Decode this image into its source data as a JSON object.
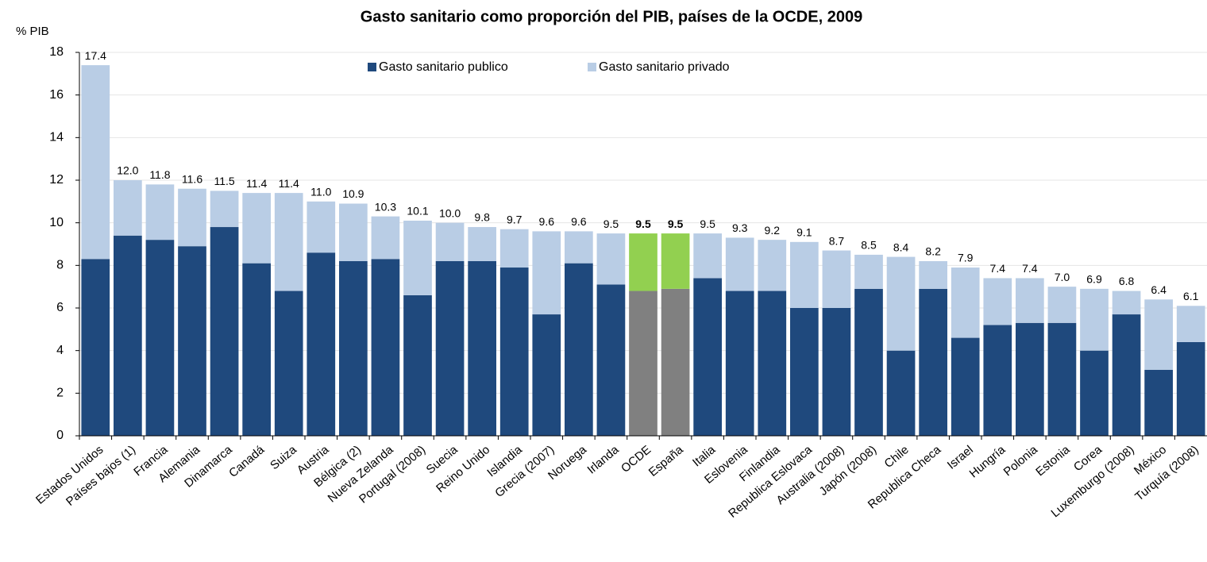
{
  "chart_data": {
    "type": "stacked_bar",
    "title": "Gasto sanitario como proporción del PIB, países de la OCDE, 2009",
    "ylabel": "% PIB",
    "categories": [
      "Estados Unidos",
      "Países bajos (1)",
      "Francia",
      "Alemania",
      "Dinamarca",
      "Canadá",
      "Suiza",
      "Austria",
      "Bélgica (2)",
      "Nueva Zelanda",
      "Portugal (2008)",
      "Suecia",
      "Reino Unido",
      "Islandia",
      "Grecia (2007)",
      "Noruega",
      "Irlanda",
      "OCDE",
      "España",
      "Italia",
      "Eslovenia",
      "Finlandia",
      "Republica Eslovaca",
      "Australia (2008)",
      "Japón (2008)",
      "Chile",
      "Republica Checa",
      "Israel",
      "Hungría",
      "Polonia",
      "Estonia",
      "Corea",
      "Luxemburgo (2008)",
      "México",
      "Turquía (2008)"
    ],
    "series": [
      {
        "name": "Gasto sanitario publico",
        "color": "#1f497d",
        "highlight_color": "#808080",
        "values": [
          8.3,
          9.4,
          9.2,
          8.9,
          9.8,
          8.1,
          6.8,
          8.6,
          8.2,
          8.3,
          6.6,
          8.2,
          8.2,
          7.9,
          5.7,
          8.1,
          7.1,
          6.8,
          6.9,
          7.4,
          6.8,
          6.8,
          6.0,
          6.0,
          6.9,
          4.0,
          6.9,
          4.6,
          5.2,
          5.3,
          5.3,
          4.0,
          5.7,
          3.1,
          4.4
        ]
      },
      {
        "name": "Gasto sanitario privado",
        "color": "#b9cde5",
        "highlight_color": "#92d050",
        "values": [
          9.1,
          2.6,
          2.6,
          2.7,
          1.7,
          3.3,
          4.6,
          2.4,
          2.7,
          2.0,
          3.5,
          1.8,
          1.6,
          1.8,
          3.9,
          1.5,
          2.4,
          2.7,
          2.6,
          2.1,
          2.5,
          2.4,
          3.1,
          2.7,
          1.6,
          4.4,
          1.3,
          3.3,
          2.2,
          2.1,
          1.7,
          2.9,
          1.1,
          3.3,
          1.7
        ]
      }
    ],
    "highlight": [
      17,
      18
    ],
    "totals": [
      17.4,
      12.0,
      11.8,
      11.6,
      11.5,
      11.4,
      11.4,
      11.0,
      10.9,
      10.3,
      10.1,
      10.0,
      9.8,
      9.7,
      9.6,
      9.6,
      9.5,
      9.5,
      9.5,
      9.5,
      9.3,
      9.2,
      9.1,
      8.7,
      8.5,
      8.4,
      8.2,
      7.9,
      7.4,
      7.4,
      7.0,
      6.9,
      6.8,
      6.4,
      6.1
    ],
    "value_labels": [
      "17.4",
      "12.0",
      "11.8",
      "11.6",
      "11.5",
      "11.4",
      "11.4",
      "11.0",
      "10.9",
      "10.3",
      "10.1",
      "10.0",
      "9.8",
      "9.7",
      "9.6",
      "9.6",
      "9.5",
      "9.5",
      "9.5",
      "9.5",
      "9.3",
      "9.2",
      "9.1",
      "8.7",
      "8.5",
      "8.4",
      "8.2",
      "7.9",
      "7.4",
      "7.4",
      "7.0",
      "6.9",
      "6.8",
      "6.4",
      "6.1"
    ],
    "ylim": [
      0,
      18
    ],
    "yticks": [
      0,
      2,
      4,
      6,
      8,
      10,
      12,
      14,
      16,
      18
    ],
    "grid": true
  }
}
